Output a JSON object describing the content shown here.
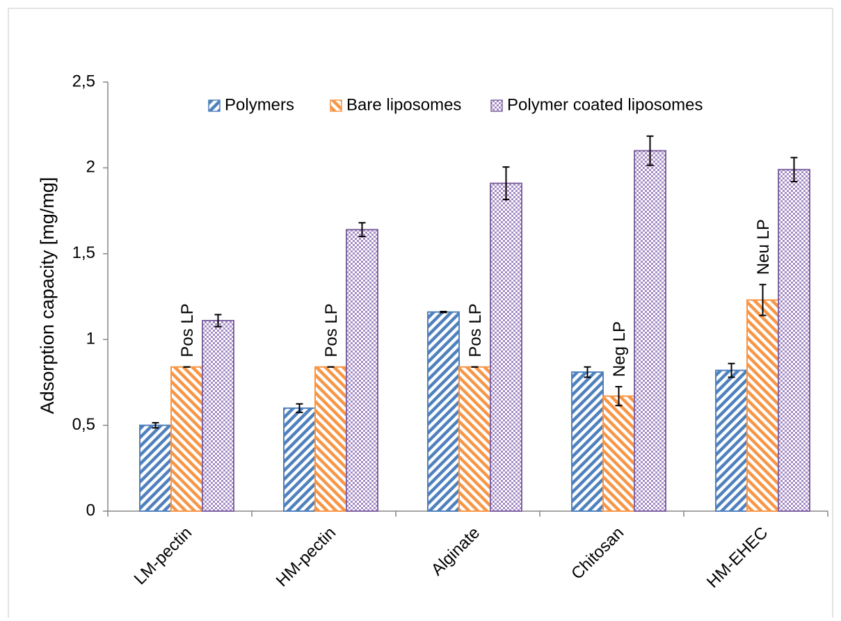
{
  "chart_data": {
    "type": "bar",
    "y_label": "Adsorption capacity [mg/mg]",
    "categories": [
      "LM-pectin",
      "HM-pectin",
      "Alginate",
      "Chitosan",
      "HM-EHEC"
    ],
    "series": [
      {
        "name": "Polymers",
        "color": "#4f81bd",
        "pattern": "diagonal-down",
        "values": [
          0.5,
          0.6,
          1.16,
          0.81,
          0.82
        ],
        "errors": [
          0.015,
          0.025,
          0.003,
          0.03,
          0.04
        ]
      },
      {
        "name": "Bare liposomes",
        "color": "#f79646",
        "pattern": "diagonal-up",
        "values": [
          0.84,
          0.84,
          0.84,
          0.67,
          1.23
        ],
        "errors": [
          0,
          0,
          0,
          0.055,
          0.09
        ]
      },
      {
        "name": "Polymer coated liposomes",
        "color": "#8064a2",
        "pattern": "checker",
        "values": [
          1.11,
          1.64,
          1.91,
          2.1,
          1.99
        ],
        "errors": [
          0.035,
          0.04,
          0.095,
          0.085,
          0.07
        ]
      }
    ],
    "annotations": [
      "Pos LP",
      "Pos LP",
      "Pos LP",
      "Neg LP",
      "Neu LP"
    ],
    "ylim": [
      0,
      2.5
    ],
    "yticks": [
      0,
      {
        "value": 0.5,
        "label": "0,5"
      },
      1,
      {
        "value": 1.5,
        "label": "1,5"
      },
      2,
      {
        "value": 2.5,
        "label": "2,5"
      }
    ],
    "grid": false,
    "legend": "top"
  }
}
